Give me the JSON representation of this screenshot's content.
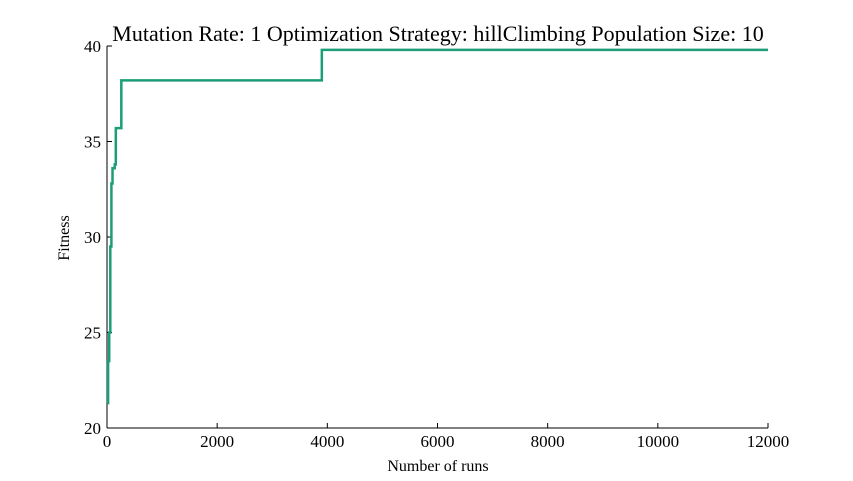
{
  "chart_data": {
    "type": "line",
    "title": "Mutation Rate: 1 Optimization Strategy: hillClimbing Population Size: 10",
    "xlabel": "Number of runs",
    "ylabel": "Fitness",
    "xlim": [
      0,
      12000
    ],
    "ylim": [
      20,
      40
    ],
    "xticks": [
      0,
      2000,
      4000,
      6000,
      8000,
      10000,
      12000
    ],
    "xtick_labels": [
      "0",
      "2000",
      "4000",
      "6000",
      "8000",
      "10000",
      "12000"
    ],
    "yticks": [
      20,
      25,
      30,
      35,
      40
    ],
    "ytick_labels": [
      "20",
      "25",
      "30",
      "35",
      "40"
    ],
    "grid": false,
    "legend": "none",
    "series": [
      {
        "color": "#1b9e77",
        "step": true,
        "x": [
          0,
          20,
          40,
          60,
          80,
          100,
          120,
          140,
          160,
          200,
          260,
          3900,
          12000
        ],
        "y": [
          21.3,
          23.5,
          25.0,
          29.5,
          32.8,
          33.6,
          33.6,
          33.8,
          35.7,
          35.7,
          38.2,
          39.8,
          39.8
        ]
      }
    ]
  }
}
